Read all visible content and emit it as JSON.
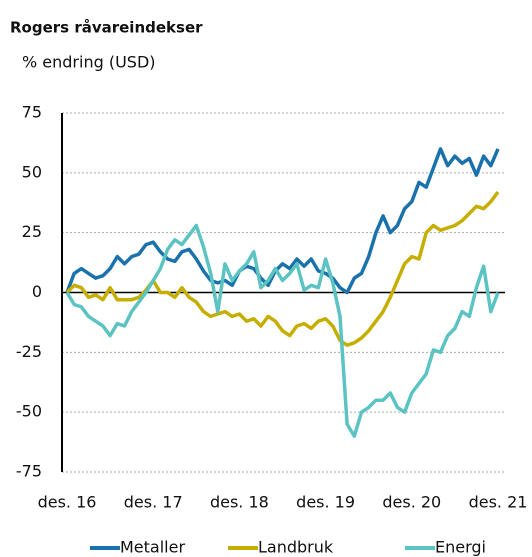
{
  "chart_data": {
    "type": "line",
    "title": "Rogers råvareindekser",
    "subtitle": "% endring (USD)",
    "categories": [
      "des. 16",
      null,
      null,
      null,
      null,
      null,
      null,
      null,
      null,
      null,
      null,
      null,
      "des. 17",
      null,
      null,
      null,
      null,
      null,
      null,
      null,
      null,
      null,
      null,
      null,
      "des. 18",
      null,
      null,
      null,
      null,
      null,
      null,
      null,
      null,
      null,
      null,
      null,
      "des. 19",
      null,
      null,
      null,
      null,
      null,
      null,
      null,
      null,
      null,
      null,
      null,
      "des. 20",
      null,
      null,
      null,
      null,
      null,
      null,
      null,
      null,
      null,
      null,
      null,
      "des. 21"
    ],
    "series": [
      {
        "name": "Metaller",
        "color": "#1a72ad",
        "values": [
          0,
          8,
          10,
          8,
          6,
          7,
          10,
          15,
          12,
          15,
          16,
          20,
          21,
          17,
          14,
          13,
          17,
          18,
          14,
          9,
          5,
          4,
          5,
          3,
          9,
          11,
          10,
          6,
          3,
          9,
          12,
          10,
          14,
          11,
          14,
          9,
          8,
          6,
          2,
          0,
          6,
          8,
          15,
          25,
          32,
          25,
          28,
          35,
          38,
          46,
          44,
          52,
          60,
          53,
          57,
          54,
          56,
          49,
          57,
          53,
          60
        ]
      },
      {
        "name": "Landbruk",
        "color": "#c6ae00",
        "values": [
          0,
          3,
          2,
          -2,
          -1,
          -3,
          2,
          -3,
          -3,
          -3,
          -2,
          1,
          5,
          0,
          0,
          -2,
          2,
          -2,
          -4,
          -8,
          -10,
          -9,
          -8,
          -10,
          -9,
          -12,
          -11,
          -14,
          -10,
          -12,
          -16,
          -18,
          -14,
          -13,
          -15,
          -12,
          -11,
          -14,
          -20,
          -22,
          -21,
          -19,
          -16,
          -12,
          -8,
          -2,
          5,
          12,
          15,
          14,
          25,
          28,
          26,
          27,
          28,
          30,
          33,
          36,
          35,
          38,
          42
        ]
      },
      {
        "name": "Energi",
        "color": "#5cc3c3",
        "values": [
          0,
          -5,
          -6,
          -10,
          -12,
          -14,
          -18,
          -13,
          -14,
          -8,
          -4,
          0,
          5,
          10,
          18,
          22,
          20,
          24,
          28,
          19,
          8,
          -8,
          12,
          5,
          9,
          12,
          17,
          2,
          5,
          10,
          5,
          8,
          12,
          1,
          3,
          2,
          14,
          4,
          -10,
          -55,
          -60,
          -50,
          -48,
          -45,
          -45,
          -42,
          -48,
          -50,
          -42,
          -38,
          -34,
          -24,
          -25,
          -18,
          -15,
          -8,
          -10,
          2,
          11,
          -8,
          0
        ]
      }
    ],
    "ylim": [
      -75,
      75
    ],
    "yticks": [
      -75,
      -50,
      -25,
      0,
      25,
      50,
      75
    ],
    "grid": true,
    "legend": "bottom"
  }
}
